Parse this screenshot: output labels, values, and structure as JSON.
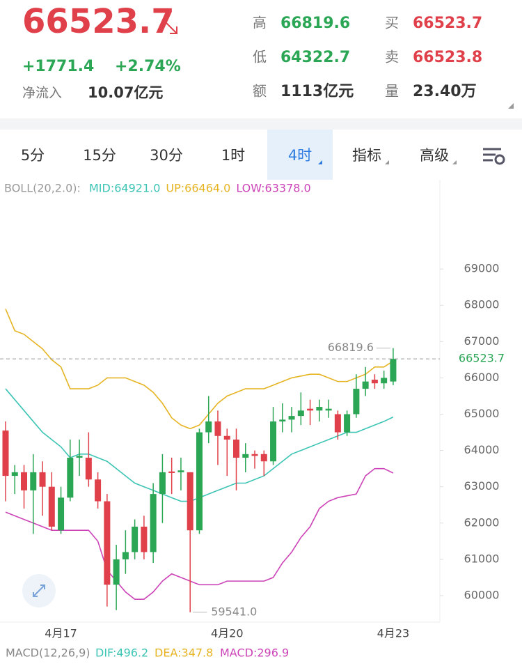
{
  "header": {
    "price": "66523.7",
    "change": "+1771.4",
    "change_pct": "+2.74%",
    "net_inflow_label": "净流入",
    "net_inflow": "10.07亿元",
    "stats": [
      {
        "label": "高",
        "value": "66819.6"
      },
      {
        "label": "买",
        "value": "66523.7"
      },
      {
        "label": "低",
        "value": "64322.7"
      },
      {
        "label": "卖",
        "value": "66523.8"
      },
      {
        "label": "额",
        "value": "1113亿元"
      },
      {
        "label": "量",
        "value": "23.40万"
      }
    ]
  },
  "tabs": [
    "5分",
    "15分",
    "30分",
    "1时",
    "4时",
    "指标",
    "高级"
  ],
  "chart_data": {
    "type": "candlestick",
    "indicator": "BOLL(20,2.0):",
    "up_color": "#2aa655",
    "down_color": "#e0404a",
    "categories": [
      null,
      null,
      null,
      null,
      null,
      null,
      "4月17",
      null,
      null,
      null,
      null,
      null,
      null,
      null,
      null,
      null,
      null,
      null,
      null,
      null,
      null,
      null,
      null,
      null,
      "4月20",
      null,
      null,
      null,
      null,
      null,
      null,
      null,
      null,
      null,
      null,
      null,
      null,
      null,
      null,
      null,
      null,
      null,
      "4月23"
    ],
    "open": [
      64550,
      63300,
      63400,
      62900,
      63400,
      63000,
      61800,
      62700,
      63800,
      63800,
      63200,
      62600,
      60300,
      61000,
      61200,
      61900,
      61200,
      62800,
      63420,
      63400,
      63400,
      61800,
      64500,
      64800,
      64400,
      64300,
      63800,
      63900,
      63900,
      63700,
      64800,
      64850,
      64950,
      65150,
      65100,
      65100,
      65000,
      64500,
      65000,
      65700,
      65950,
      65850,
      65900
    ],
    "close": [
      63300,
      63400,
      62900,
      63400,
      63000,
      61900,
      62700,
      63800,
      63850,
      63200,
      62600,
      60300,
      61000,
      61200,
      61900,
      61200,
      62800,
      63400,
      63380,
      63450,
      61800,
      64500,
      64800,
      64400,
      64300,
      63800,
      63900,
      63850,
      63700,
      64800,
      64850,
      64950,
      65100,
      65100,
      65200,
      65150,
      64500,
      65000,
      65700,
      65900,
      65850,
      66000,
      66523.7
    ],
    "high": [
      64800,
      63600,
      63600,
      63900,
      63700,
      63400,
      63000,
      64300,
      64300,
      64500,
      63400,
      62800,
      61400,
      61800,
      62100,
      62200,
      63100,
      63900,
      63800,
      63800,
      63400,
      64600,
      65500,
      65100,
      64600,
      64600,
      64200,
      64000,
      64000,
      65200,
      65300,
      65200,
      65600,
      65400,
      65400,
      65400,
      65100,
      65100,
      66100,
      66300,
      66100,
      66200,
      66819.6
    ],
    "low": [
      62600,
      62800,
      62400,
      61700,
      62200,
      61800,
      61700,
      62600,
      63300,
      63000,
      62400,
      59700,
      59600,
      60600,
      61000,
      61000,
      60900,
      62000,
      62800,
      62900,
      59541,
      61700,
      64200,
      63600,
      63300,
      62900,
      63400,
      63500,
      63300,
      63600,
      64500,
      64500,
      64700,
      64700,
      64800,
      64900,
      64300,
      64400,
      64900,
      65500,
      65700,
      65700,
      65800
    ],
    "series": [
      {
        "name": "MID",
        "label": "MID:64921.0",
        "color": "#3cc4b4",
        "values": [
          65700,
          65400,
          65100,
          64800,
          64500,
          64300,
          64100,
          63800,
          63900,
          63900,
          63800,
          63700,
          63500,
          63300,
          63100,
          63000,
          62900,
          62800,
          62700,
          62600,
          62600,
          62700,
          62800,
          62900,
          63000,
          63100,
          63100,
          63200,
          63300,
          63500,
          63700,
          63900,
          64000,
          64100,
          64200,
          64300,
          64400,
          64500,
          64500,
          64600,
          64700,
          64800,
          64921
        ]
      },
      {
        "name": "UP",
        "label": "UP:66464.0",
        "color": "#e6b422",
        "values": [
          67900,
          67300,
          67200,
          67000,
          66800,
          66500,
          66300,
          65700,
          65700,
          65700,
          65800,
          66000,
          66000,
          66000,
          65900,
          65800,
          65600,
          65300,
          64900,
          64700,
          64600,
          64700,
          65000,
          65300,
          65500,
          65600,
          65700,
          65700,
          65700,
          65800,
          65900,
          66000,
          66050,
          66100,
          66100,
          66000,
          65900,
          65900,
          66000,
          66100,
          66300,
          66300,
          66464
        ]
      },
      {
        "name": "LOW",
        "label": "LOW:63378.0",
        "color": "#cc44b8",
        "values": [
          62300,
          62200,
          62100,
          62000,
          61900,
          61800,
          61800,
          61800,
          61800,
          61800,
          61500,
          60700,
          60400,
          60100,
          59900,
          59900,
          60100,
          60400,
          60600,
          60500,
          60400,
          60300,
          60300,
          60300,
          60400,
          60400,
          60400,
          60400,
          60400,
          60500,
          60900,
          61200,
          61600,
          61900,
          62400,
          62600,
          62700,
          62750,
          62800,
          63300,
          63500,
          63500,
          63378
        ]
      }
    ],
    "ylim": [
      59270,
      71460
    ],
    "yticks": [
      60000,
      61000,
      62000,
      63000,
      64000,
      65000,
      66000,
      67000,
      68000,
      69000
    ],
    "annotations": {
      "high": {
        "value": 66819.6,
        "label": "66819.6"
      },
      "low": {
        "value": 59541,
        "label": "59541.0"
      },
      "last": {
        "value": 66523.7,
        "label": "66523.7"
      }
    },
    "macd": {
      "label": "MACD(12,26,9)",
      "dif": "DIF:496.2",
      "dea": "DEA:347.8",
      "macd": "MACD:296.9"
    }
  }
}
